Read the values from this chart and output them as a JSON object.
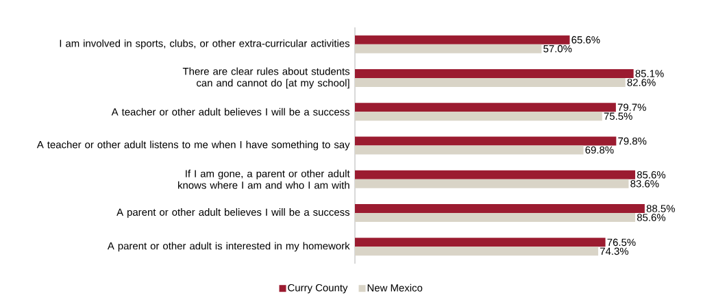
{
  "chart_data": {
    "type": "bar",
    "orientation": "horizontal",
    "categories": [
      "I am involved in sports, clubs, or other extra-curricular activities",
      "There are clear rules about students can and cannot do [at my school]",
      "A teacher or other adult believes I will be a success",
      "A teacher or other adult listens to me when I have something to say",
      "If I am gone, a parent or other adult knows where I am and who I am with",
      "A parent or other adult believes I will be a success",
      "A parent or other adult is interested in my homework"
    ],
    "series": [
      {
        "name": "Curry County",
        "color": "#9b1b30",
        "values": [
          65.6,
          85.1,
          79.7,
          79.8,
          85.6,
          88.5,
          76.5
        ],
        "value_labels": [
          "65.6%",
          "85.1%",
          "79.7%",
          "79.8%",
          "85.6%",
          "88.5%",
          "76.5%"
        ]
      },
      {
        "name": "New Mexico",
        "color": "#d9d4c7",
        "values": [
          57.0,
          82.6,
          75.5,
          69.8,
          83.6,
          85.6,
          74.3
        ],
        "value_labels": [
          "57.0%",
          "82.6%",
          "75.5%",
          "69.8%",
          "83.6%",
          "85.6%",
          "74.3%"
        ]
      }
    ],
    "legend": "bottom",
    "grid": false
  }
}
